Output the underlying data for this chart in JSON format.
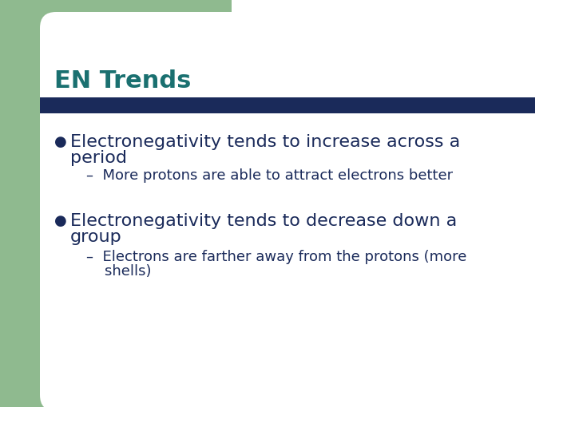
{
  "title": "EN Trends",
  "title_color": "#1a7070",
  "title_fontsize": 22,
  "title_bold": false,
  "bg_color": "#ffffff",
  "corner_rect_color": "#8fba8f",
  "divider_color": "#1a2a5a",
  "bullet_color": "#1a2a5a",
  "bullet1_line1": "Electronegativity tends to increase across a",
  "bullet1_line2": "period",
  "sub1": "–  More protons are able to attract electrons better",
  "bullet2_line1": "Electronegativity tends to decrease down a",
  "bullet2_line2": "group",
  "sub2_line1": "–  Electrons are farther away from the protons (more",
  "sub2_line2": "    shells)",
  "body_fontsize": 16,
  "sub_fontsize": 13,
  "body_color": "#1a2a5a"
}
